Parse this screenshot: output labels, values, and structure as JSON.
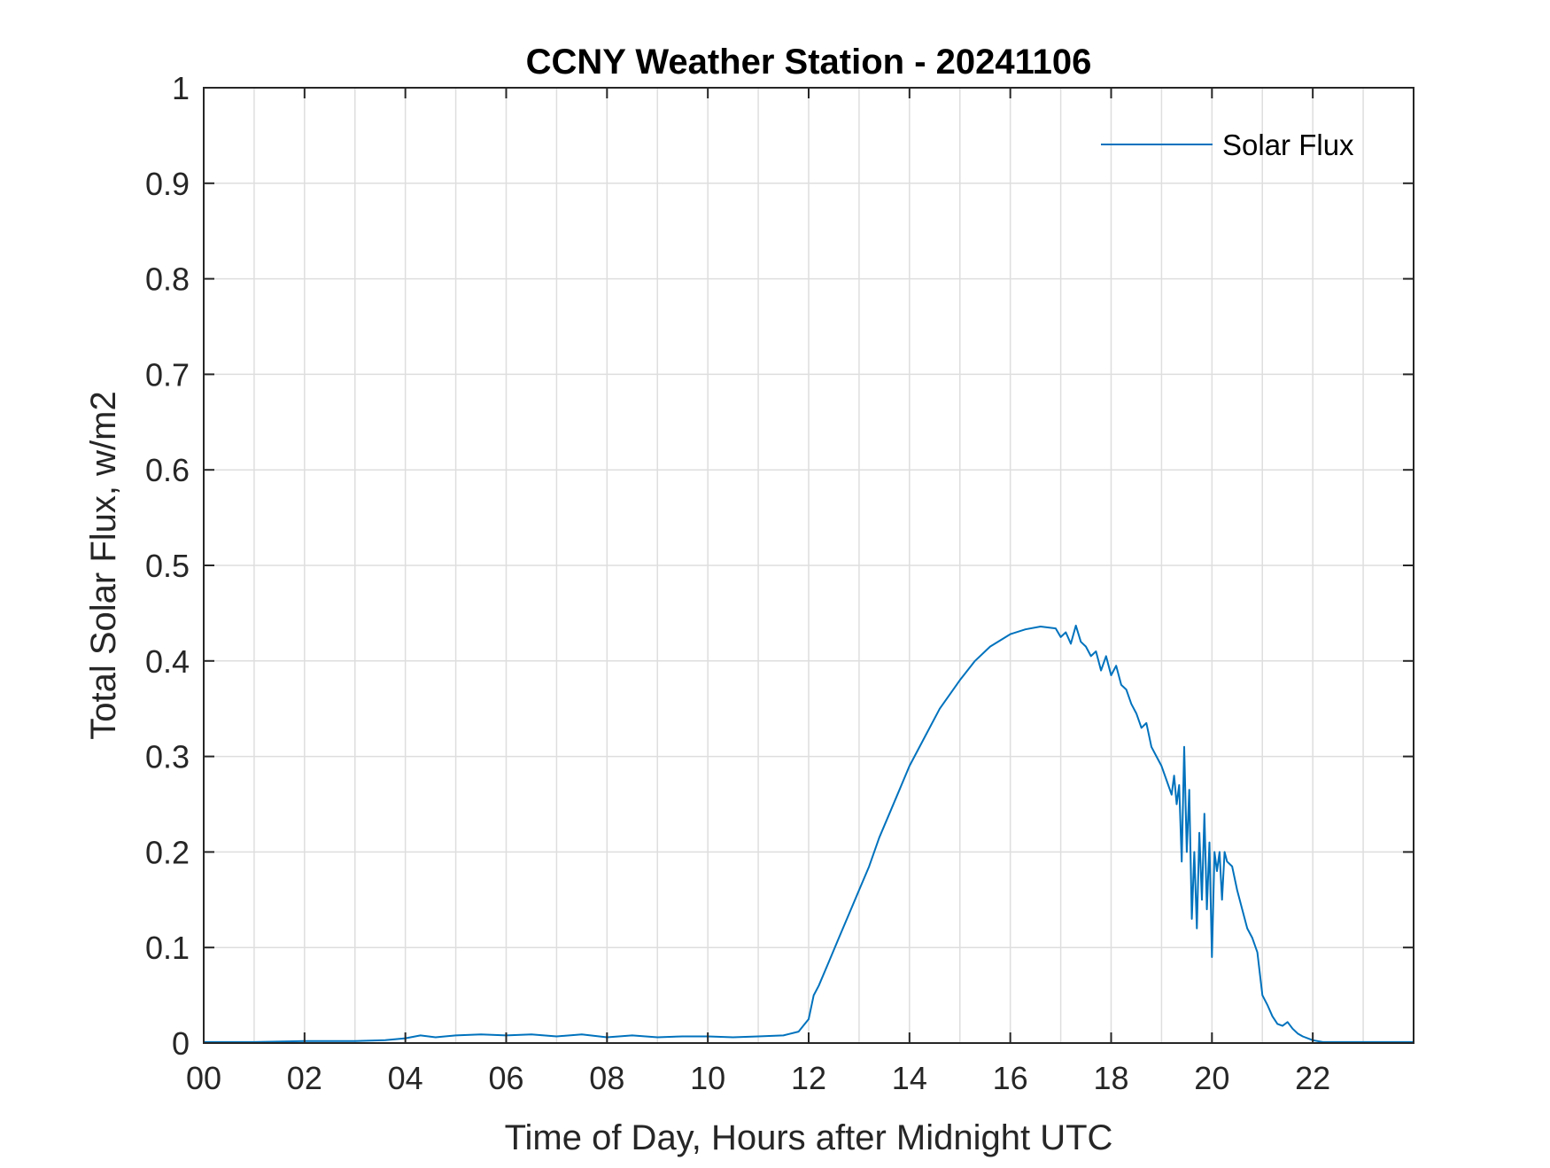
{
  "chart_data": {
    "type": "line",
    "title": "CCNY Weather Station - 20241106",
    "xlabel": "Time of Day, Hours after Midnight UTC",
    "ylabel": "Total Solar Flux, w/m2",
    "xlim": [
      0,
      24
    ],
    "ylim": [
      0,
      1
    ],
    "grid": true,
    "x_ticks": [
      0,
      2,
      4,
      6,
      8,
      10,
      12,
      14,
      16,
      18,
      20,
      22
    ],
    "x_tick_labels": [
      "00",
      "02",
      "04",
      "06",
      "08",
      "10",
      "12",
      "14",
      "16",
      "18",
      "20",
      "22"
    ],
    "x_minor_grid_step": 1,
    "y_ticks": [
      0,
      0.1,
      0.2,
      0.3,
      0.4,
      0.5,
      0.6,
      0.7,
      0.8,
      0.9,
      1
    ],
    "y_tick_labels": [
      "0",
      "0.1",
      "0.2",
      "0.3",
      "0.4",
      "0.5",
      "0.6",
      "0.7",
      "0.8",
      "0.9",
      "1"
    ],
    "legend": {
      "entries": [
        "Solar Flux"
      ],
      "location": "top-right"
    },
    "series": [
      {
        "name": "Solar Flux",
        "color": "#0072BD",
        "x": [
          0,
          1,
          2,
          3,
          3.6,
          4,
          4.3,
          4.6,
          5,
          5.5,
          6,
          6.5,
          7,
          7.5,
          8,
          8.5,
          9,
          9.5,
          10,
          10.5,
          11,
          11.5,
          11.8,
          12,
          12.1,
          12.2,
          12.4,
          12.6,
          12.8,
          13,
          13.2,
          13.4,
          13.6,
          13.8,
          14,
          14.3,
          14.6,
          15,
          15.3,
          15.6,
          16,
          16.3,
          16.6,
          16.9,
          17,
          17.1,
          17.2,
          17.3,
          17.4,
          17.5,
          17.6,
          17.7,
          17.8,
          17.9,
          18,
          18.1,
          18.2,
          18.3,
          18.4,
          18.5,
          18.6,
          18.7,
          18.8,
          18.9,
          19,
          19.1,
          19.2,
          19.25,
          19.3,
          19.35,
          19.4,
          19.45,
          19.5,
          19.55,
          19.6,
          19.65,
          19.7,
          19.75,
          19.8,
          19.85,
          19.9,
          19.95,
          20,
          20.05,
          20.1,
          20.15,
          20.2,
          20.25,
          20.3,
          20.4,
          20.5,
          20.6,
          20.7,
          20.8,
          20.9,
          21,
          21.1,
          21.2,
          21.3,
          21.4,
          21.5,
          21.6,
          21.7,
          21.8,
          22,
          22.2,
          22.5,
          23,
          24
        ],
        "y": [
          0.001,
          0.001,
          0.002,
          0.002,
          0.003,
          0.005,
          0.008,
          0.006,
          0.008,
          0.009,
          0.008,
          0.009,
          0.007,
          0.009,
          0.006,
          0.008,
          0.006,
          0.007,
          0.007,
          0.006,
          0.007,
          0.008,
          0.012,
          0.025,
          0.05,
          0.06,
          0.085,
          0.11,
          0.135,
          0.16,
          0.185,
          0.215,
          0.24,
          0.265,
          0.29,
          0.32,
          0.35,
          0.38,
          0.4,
          0.415,
          0.428,
          0.433,
          0.436,
          0.434,
          0.425,
          0.43,
          0.418,
          0.437,
          0.42,
          0.415,
          0.405,
          0.41,
          0.39,
          0.405,
          0.385,
          0.395,
          0.375,
          0.37,
          0.355,
          0.345,
          0.33,
          0.335,
          0.31,
          0.3,
          0.29,
          0.275,
          0.26,
          0.28,
          0.25,
          0.27,
          0.19,
          0.31,
          0.2,
          0.265,
          0.13,
          0.2,
          0.12,
          0.22,
          0.15,
          0.24,
          0.14,
          0.21,
          0.09,
          0.2,
          0.18,
          0.2,
          0.15,
          0.2,
          0.19,
          0.185,
          0.16,
          0.14,
          0.12,
          0.11,
          0.095,
          0.05,
          0.04,
          0.028,
          0.02,
          0.018,
          0.022,
          0.015,
          0.01,
          0.007,
          0.003,
          0.001,
          0.001,
          0.001,
          0.001
        ]
      }
    ]
  }
}
